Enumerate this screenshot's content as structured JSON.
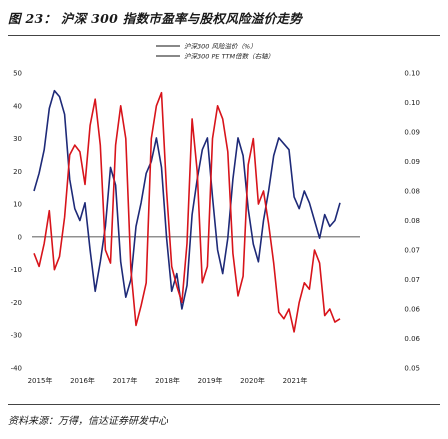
{
  "figure": {
    "title": "图 23： 沪深 300 指数市盈率与股权风险溢价走势",
    "source": "资料来源：万得，信达证券研发中心"
  },
  "chart_data": {
    "type": "line",
    "xlabel": "",
    "ylabel": "",
    "x_tick_labels": [
      "2015年",
      "2016年",
      "2017年",
      "2018年",
      "2019年",
      "2020年",
      "2021年"
    ],
    "left_axis": {
      "ticks": [
        "50",
        "40",
        "30",
        "20",
        "10",
        "0",
        "-10",
        "-20",
        "-30",
        "-40"
      ],
      "range": [
        -40,
        50
      ]
    },
    "right_axis": {
      "ticks": [
        "0.10",
        "0.10",
        "0.09",
        "0.09",
        "0.08",
        "0.08",
        "0.07",
        "0.07",
        "0.06",
        "0.06",
        "0.05"
      ],
      "range": [
        0.05,
        0.1
      ]
    },
    "legend": {
      "placement": "top-center"
    },
    "series": [
      {
        "name": "沪深300 风险溢价（%）",
        "axis": "left",
        "color": "#d8141b",
        "x": [
          2015.0,
          2015.1,
          2015.2,
          2015.3,
          2015.4,
          2015.5,
          2015.6,
          2015.7,
          2015.8,
          2015.9,
          2016.0,
          2016.1,
          2016.2,
          2016.3,
          2016.4,
          2016.5,
          2016.6,
          2016.7,
          2016.8,
          2016.9,
          2017.0,
          2017.1,
          2017.2,
          2017.3,
          2017.4,
          2017.5,
          2017.6,
          2017.7,
          2017.8,
          2017.9,
          2018.0,
          2018.1,
          2018.2,
          2018.3,
          2018.4,
          2018.5,
          2018.6,
          2018.7,
          2018.8,
          2018.9,
          2019.0,
          2019.1,
          2019.2,
          2019.3,
          2019.4,
          2019.5,
          2019.6,
          2019.7,
          2019.8,
          2019.9,
          2020.0,
          2020.1,
          2020.2,
          2020.3,
          2020.4,
          2020.5,
          2020.6,
          2020.7,
          2020.8,
          2020.9,
          2021.0
        ],
        "y": [
          -5,
          -9,
          -2,
          8,
          -10,
          -6,
          6,
          25,
          28,
          26,
          16,
          34,
          42,
          28,
          -4,
          -8,
          28,
          40,
          30,
          -10,
          -27,
          -21,
          -14,
          30,
          40,
          44,
          14,
          -9,
          -15,
          -20,
          -2,
          36,
          20,
          -14,
          -9,
          30,
          40,
          36,
          26,
          -5,
          -18,
          -12,
          22,
          30,
          10,
          14,
          4,
          -8,
          -23,
          -25,
          -22,
          -29,
          -20,
          -14,
          -16,
          -4,
          -8,
          -24,
          -22,
          -26,
          -25
        ]
      },
      {
        "name": "沪深300 PE TTM倍数（右轴）",
        "axis": "right",
        "color": "#1e2a78",
        "x": [
          2015.0,
          2015.1,
          2015.2,
          2015.3,
          2015.4,
          2015.5,
          2015.6,
          2015.7,
          2015.8,
          2015.9,
          2016.0,
          2016.1,
          2016.2,
          2016.3,
          2016.4,
          2016.5,
          2016.6,
          2016.7,
          2016.8,
          2016.9,
          2017.0,
          2017.1,
          2017.2,
          2017.3,
          2017.4,
          2017.5,
          2017.6,
          2017.7,
          2017.8,
          2017.9,
          2018.0,
          2018.1,
          2018.2,
          2018.3,
          2018.4,
          2018.5,
          2018.6,
          2018.7,
          2018.8,
          2018.9,
          2019.0,
          2019.1,
          2019.2,
          2019.3,
          2019.4,
          2019.5,
          2019.6,
          2019.7,
          2019.8,
          2019.9,
          2020.0,
          2020.1,
          2020.2,
          2020.3,
          2020.4,
          2020.5,
          2020.6,
          2020.7,
          2020.8,
          2020.9,
          2021.0
        ],
        "y": [
          0.08,
          0.083,
          0.087,
          0.094,
          0.097,
          0.096,
          0.093,
          0.082,
          0.077,
          0.075,
          0.078,
          0.07,
          0.063,
          0.068,
          0.074,
          0.084,
          0.081,
          0.068,
          0.062,
          0.065,
          0.074,
          0.078,
          0.083,
          0.085,
          0.089,
          0.084,
          0.072,
          0.063,
          0.066,
          0.06,
          0.064,
          0.076,
          0.082,
          0.087,
          0.089,
          0.079,
          0.07,
          0.066,
          0.072,
          0.082,
          0.089,
          0.086,
          0.077,
          0.071,
          0.068,
          0.075,
          0.08,
          0.086,
          0.089,
          0.088,
          0.087,
          0.079,
          0.077,
          0.08,
          0.078,
          0.075,
          0.072,
          0.076,
          0.074,
          0.075,
          0.078
        ]
      }
    ]
  }
}
